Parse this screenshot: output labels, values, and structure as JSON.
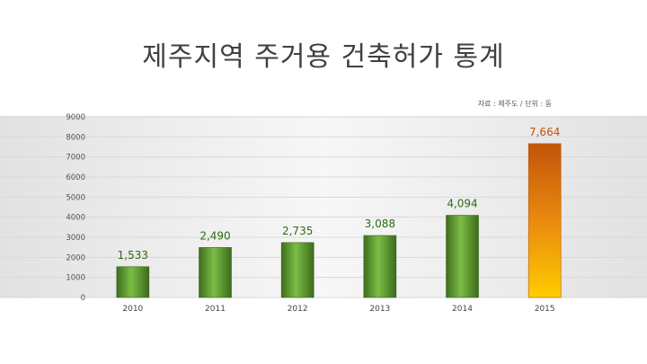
{
  "title": "제주지역 주거용 건축허가 통계",
  "source_note": "자료 : 제주도 / 단위 : 동",
  "colors": {
    "bar_normal_dark": "#3f6e1e",
    "bar_normal_light": "#7bbd45",
    "bar_highlight_top": "#c2540a",
    "bar_highlight_bottom": "#ffcc00",
    "label_normal": "#2e6a14",
    "label_highlight": "#c5500c",
    "grid": "#d9d9d9",
    "band": "#e4e4e4"
  },
  "chart_data": {
    "type": "bar",
    "title": "제주지역 주거용 건축허가 통계",
    "categories": [
      "2010",
      "2011",
      "2012",
      "2013",
      "2014",
      "2015"
    ],
    "values": [
      1533,
      2490,
      2735,
      3088,
      4094,
      7664
    ],
    "value_labels": [
      "1,533",
      "2,490",
      "2,735",
      "3,088",
      "4,094",
      "7,664"
    ],
    "highlight_index": 5,
    "ylim": [
      0,
      9000
    ],
    "yticks": [
      0,
      1000,
      2000,
      3000,
      4000,
      5000,
      6000,
      7000,
      8000,
      9000
    ],
    "ytick_labels": [
      "0",
      "1000",
      "2000",
      "3000",
      "4000",
      "5000",
      "6000",
      "7000",
      "8000",
      "9000"
    ],
    "grid": true,
    "xlabel": "",
    "ylabel": ""
  }
}
